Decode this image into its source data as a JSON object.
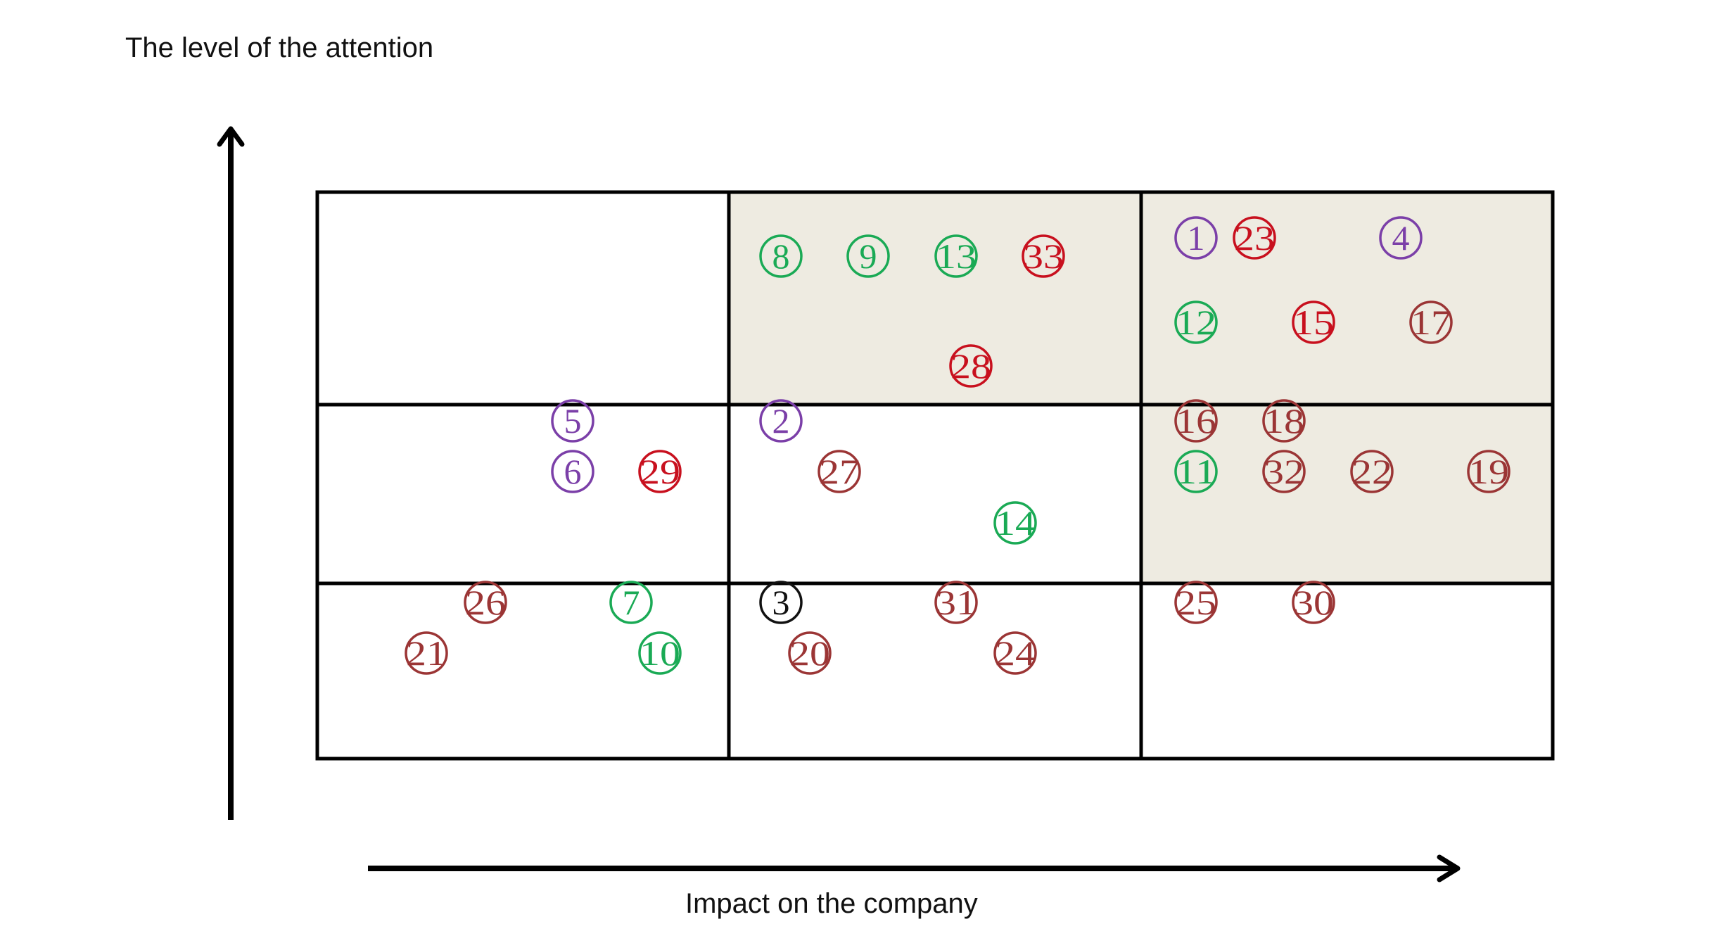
{
  "labels": {
    "y_axis": "The level of the attention",
    "x_axis": "Impact on the company"
  },
  "grid": {
    "columns": 3,
    "rows": 3,
    "shaded_cells": [
      [
        0,
        1
      ],
      [
        0,
        2
      ],
      [
        1,
        2
      ]
    ],
    "colors": {
      "border": "#000000",
      "shade": "#eeebe1",
      "background": "#ffffff"
    }
  },
  "palette": {
    "purple": "#7b3fa8",
    "green": "#1aaa55",
    "red": "#c8101e",
    "brown": "#9b3535",
    "black": "#111111"
  },
  "items": [
    {
      "n": "1",
      "color": "purple"
    },
    {
      "n": "23",
      "color": "red"
    },
    {
      "n": "4",
      "color": "purple"
    },
    {
      "n": "8",
      "color": "green"
    },
    {
      "n": "9",
      "color": "green"
    },
    {
      "n": "13",
      "color": "green"
    },
    {
      "n": "33",
      "color": "red"
    },
    {
      "n": "12",
      "color": "green"
    },
    {
      "n": "15",
      "color": "red"
    },
    {
      "n": "17",
      "color": "brown"
    },
    {
      "n": "28",
      "color": "red"
    },
    {
      "n": "5",
      "color": "purple"
    },
    {
      "n": "2",
      "color": "purple"
    },
    {
      "n": "16",
      "color": "brown"
    },
    {
      "n": "18",
      "color": "brown"
    },
    {
      "n": "6",
      "color": "purple"
    },
    {
      "n": "29",
      "color": "red"
    },
    {
      "n": "27",
      "color": "brown"
    },
    {
      "n": "11",
      "color": "green"
    },
    {
      "n": "32",
      "color": "brown"
    },
    {
      "n": "22",
      "color": "brown"
    },
    {
      "n": "19",
      "color": "brown"
    },
    {
      "n": "14",
      "color": "green"
    },
    {
      "n": "26",
      "color": "brown"
    },
    {
      "n": "7",
      "color": "green"
    },
    {
      "n": "3",
      "color": "black"
    },
    {
      "n": "31",
      "color": "brown"
    },
    {
      "n": "25",
      "color": "brown"
    },
    {
      "n": "30",
      "color": "brown"
    },
    {
      "n": "21",
      "color": "brown"
    },
    {
      "n": "10",
      "color": "green"
    },
    {
      "n": "20",
      "color": "brown"
    },
    {
      "n": "24",
      "color": "brown"
    }
  ]
}
